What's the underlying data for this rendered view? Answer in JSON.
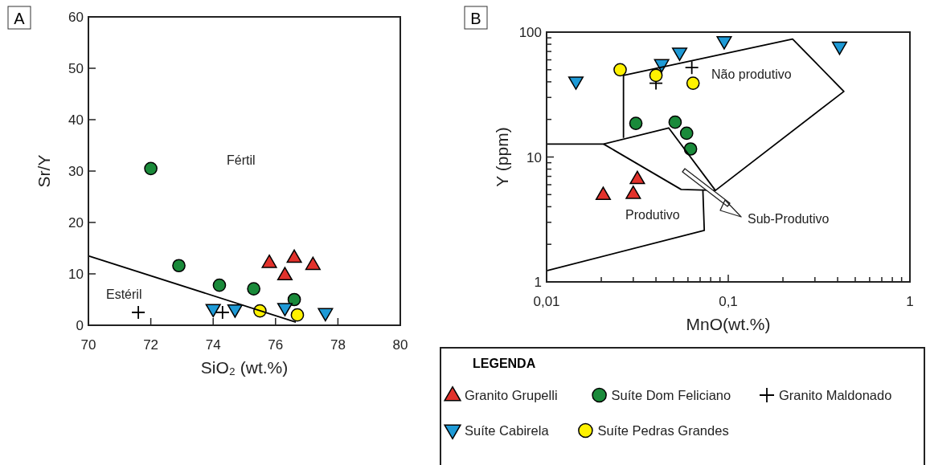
{
  "chart_data": [
    {
      "type": "scatter",
      "title": "A",
      "xlabel": "SiO₂ (wt.%)",
      "ylabel": "Sr/Y",
      "xlim": [
        70,
        80
      ],
      "ylim": [
        0,
        60
      ],
      "xticks": [
        70,
        72,
        74,
        76,
        78,
        80
      ],
      "yticks": [
        0,
        10,
        20,
        30,
        40,
        50,
        60
      ],
      "annotations": [
        "Fértil",
        "Estéril"
      ],
      "series": [
        {
          "color": "#e2322c",
          "marker": "triangle",
          "x": [
            75.8,
            76.6,
            76.3,
            77.2
          ],
          "values": [
            12.2,
            13.2,
            9.8,
            11.8
          ]
        },
        {
          "color": "#1a8a3a",
          "marker": "circle",
          "x": [
            72.0,
            72.9,
            74.2,
            75.3,
            76.6
          ],
          "values": [
            30.5,
            11.6,
            7.8,
            7.1,
            5.0
          ]
        },
        {
          "color": "#000000",
          "marker": "cross",
          "x": [
            71.6,
            74.3
          ],
          "values": [
            2.5,
            2.5
          ]
        },
        {
          "color": "#1e9ad6",
          "marker": "triangle-down",
          "x": [
            74.0,
            74.7,
            76.3,
            77.6
          ],
          "values": [
            3.1,
            3.0,
            3.3,
            2.3
          ]
        },
        {
          "color": "#fff200",
          "marker": "circle",
          "x": [
            75.5,
            76.7
          ],
          "values": [
            2.8,
            2.0
          ]
        },
        {
          "type": "line",
          "color": "#000000",
          "x": [
            70,
            76.65
          ],
          "values": [
            13.5,
            0.6
          ]
        }
      ]
    },
    {
      "type": "scatter",
      "title": "B",
      "xlabel": "MnO(wt.%)",
      "ylabel": "Y (ppm)",
      "log": "xy",
      "xlim": [
        0.01,
        1
      ],
      "ylim": [
        1,
        100
      ],
      "xticks": [
        {
          "value": 0.01,
          "label": "0,01"
        },
        {
          "value": 0.02,
          "label": null
        },
        {
          "value": 0.03,
          "label": null
        },
        {
          "value": 0.04,
          "label": null
        },
        {
          "value": 0.05,
          "label": null
        },
        {
          "value": 0.06,
          "label": null
        },
        {
          "value": 0.07,
          "label": null
        },
        {
          "value": 0.08,
          "label": null
        },
        {
          "value": 0.09,
          "label": null
        },
        {
          "value": 0.1,
          "label": "0,1"
        },
        {
          "value": 0.2,
          "label": null
        },
        {
          "value": 0.3,
          "label": null
        },
        {
          "value": 0.4,
          "label": null
        },
        {
          "value": 0.5,
          "label": null
        },
        {
          "value": 0.6,
          "label": null
        },
        {
          "value": 0.7,
          "label": null
        },
        {
          "value": 0.8,
          "label": null
        },
        {
          "value": 0.9,
          "label": null
        },
        {
          "value": 1,
          "label": "1"
        }
      ],
      "yticks": [
        1,
        {
          "value": 2,
          "label": null
        },
        {
          "value": 3,
          "label": null
        },
        {
          "value": 4,
          "label": null
        },
        {
          "value": 5,
          "label": null
        },
        {
          "value": 6,
          "label": null
        },
        {
          "value": 7,
          "label": null
        },
        {
          "value": 8,
          "label": null
        },
        {
          "value": 9,
          "label": null
        },
        10,
        {
          "value": 20,
          "label": null
        },
        {
          "value": 30,
          "label": null
        },
        {
          "value": 40,
          "label": null
        },
        {
          "value": 50,
          "label": null
        },
        {
          "value": 60,
          "label": null
        },
        {
          "value": 70,
          "label": null
        },
        {
          "value": 80,
          "label": null
        },
        {
          "value": 90,
          "label": null
        },
        100
      ],
      "annotations": [
        "Não produtivo",
        "Produtivo",
        "Sub-Produtivo"
      ],
      "legend": "bottom",
      "legend_title": "LEGENDA",
      "series": [
        {
          "name": "Granito Grupelli",
          "color": "#e2322c",
          "marker": "triangle",
          "x": [
            0.0205,
            0.03,
            0.0316
          ],
          "values": [
            5.0,
            5.1,
            6.7
          ]
        },
        {
          "name": "Suíte Dom Feliciano",
          "color": "#1a8a3a",
          "marker": "circle",
          "x": [
            0.031,
            0.051,
            0.059,
            0.062
          ],
          "values": [
            18.6,
            19,
            15.5,
            11.6
          ]
        },
        {
          "name": "Granito Maldonado",
          "color": "#000000",
          "marker": "cross",
          "x": [
            0.04,
            0.063
          ],
          "values": [
            39,
            52
          ]
        },
        {
          "name": "Suíte Cabirela",
          "color": "#1e9ad6",
          "marker": "triangle-down",
          "x": [
            0.0145,
            0.043,
            0.054,
            0.095,
            0.41
          ],
          "values": [
            40,
            55,
            68,
            84,
            76
          ]
        },
        {
          "name": "Suíte Pedras Grandes",
          "color": "#fff200",
          "marker": "circle",
          "x": [
            0.0254,
            0.04,
            0.064
          ],
          "values": [
            50,
            45,
            39
          ]
        },
        {
          "type": "line",
          "color": "#000000",
          "x": [
            0.0265,
            0.0265,
            0.226,
            0.433,
            0.085,
            0.047,
            0.0206,
            0.01
          ],
          "values": [
            14.2,
            45,
            88,
            33.5,
            5.4,
            17.1,
            12.7,
            12.7
          ]
        },
        {
          "type": "line",
          "color": "#000000",
          "x": [
            0.0206,
            0.055,
            0.085
          ],
          "values": [
            12.7,
            5.5,
            5.4
          ]
        },
        {
          "type": "line",
          "color": "#000000",
          "x": [
            0.0725,
            0.0738,
            0.01
          ],
          "values": [
            5.4,
            2.58,
            1.23
          ]
        }
      ]
    }
  ]
}
